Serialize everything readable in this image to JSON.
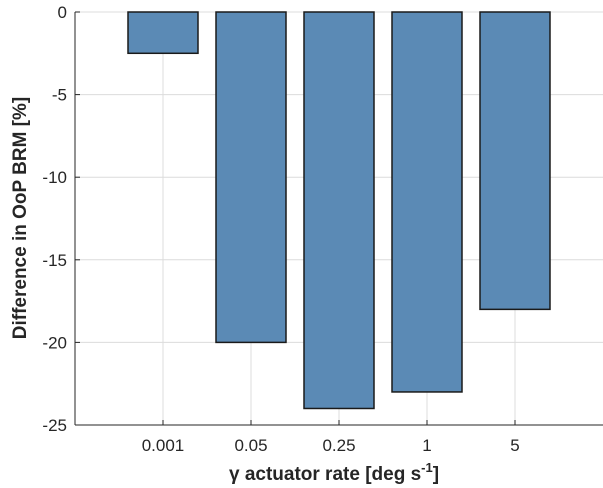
{
  "chart_data": {
    "type": "bar",
    "categories": [
      "0.001",
      "0.05",
      "0.25",
      "1",
      "5"
    ],
    "values": [
      -2.5,
      -20,
      -24,
      -23,
      -18
    ],
    "xlabel": {
      "prefix": "γ actuator rate [deg s",
      "superscript": "-1",
      "suffix": "]"
    },
    "ylabel": "Difference in OoP BRM [%]",
    "ylim": [
      -25,
      0
    ],
    "yticks": [
      0,
      -5,
      -10,
      -15,
      -20,
      -25
    ],
    "ytick_labels": [
      "0",
      "-5",
      "-10",
      "-15",
      "-20",
      "-25"
    ],
    "grid": true,
    "bar_color": "#5b8ab5",
    "bar_edge_color": "#1a1a1a"
  }
}
